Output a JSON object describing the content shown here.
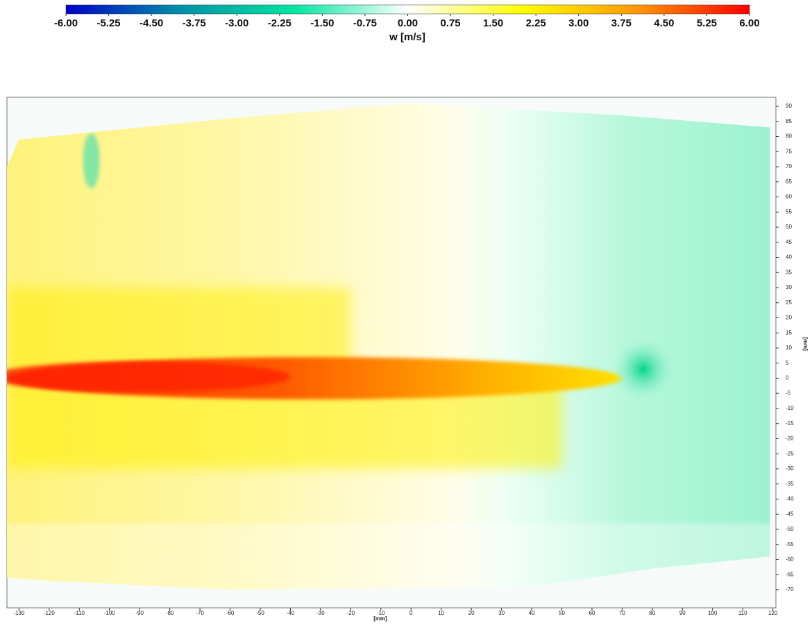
{
  "chart_data": {
    "type": "heatmap",
    "colorbar": {
      "label": "w [m/s]",
      "lim": [
        -6,
        6
      ],
      "colors": [
        "#0000c8",
        "#0090a8",
        "#00e6a0",
        "#ffffff",
        "#ffff00",
        "#ff9a00",
        "#ff0000"
      ],
      "ticks": [
        {
          "value": -6,
          "label": "-6.00"
        },
        {
          "value": -5.25,
          "label": "-5.25"
        },
        {
          "value": -4.5,
          "label": "-4.50"
        },
        {
          "value": -3.75,
          "label": "-3.75"
        },
        {
          "value": -3,
          "label": "-3.00"
        },
        {
          "value": -2.25,
          "label": "-2.25"
        },
        {
          "value": -1.5,
          "label": "-1.50"
        },
        {
          "value": -0.75,
          "label": "-0.75"
        },
        {
          "value": 0,
          "label": "0.00"
        },
        {
          "value": 0.75,
          "label": "0.75"
        },
        {
          "value": 1.5,
          "label": "1.50"
        },
        {
          "value": 2.25,
          "label": "2.25"
        },
        {
          "value": 3,
          "label": "3.00"
        },
        {
          "value": 3.75,
          "label": "3.75"
        },
        {
          "value": 4.5,
          "label": "4.50"
        },
        {
          "value": 5.25,
          "label": "5.25"
        },
        {
          "value": 6,
          "label": "6.00"
        }
      ]
    },
    "x_label": "[mm]",
    "y_label": "[mm]",
    "xlim": [
      -134,
      121
    ],
    "ylim": [
      -76,
      93
    ],
    "xticks": [
      -130,
      -120,
      -110,
      -100,
      -90,
      -80,
      -70,
      -60,
      -50,
      -40,
      -30,
      -20,
      -10,
      0,
      10,
      20,
      30,
      40,
      50,
      60,
      70,
      80,
      90,
      100,
      110,
      120
    ],
    "yticks": [
      -70,
      -65,
      -60,
      -55,
      -50,
      -45,
      -40,
      -35,
      -30,
      -25,
      -20,
      -15,
      -10,
      -5,
      0,
      5,
      10,
      15,
      20,
      25,
      30,
      35,
      40,
      45,
      50,
      55,
      60,
      65,
      70,
      75,
      80,
      85,
      90
    ]
  }
}
